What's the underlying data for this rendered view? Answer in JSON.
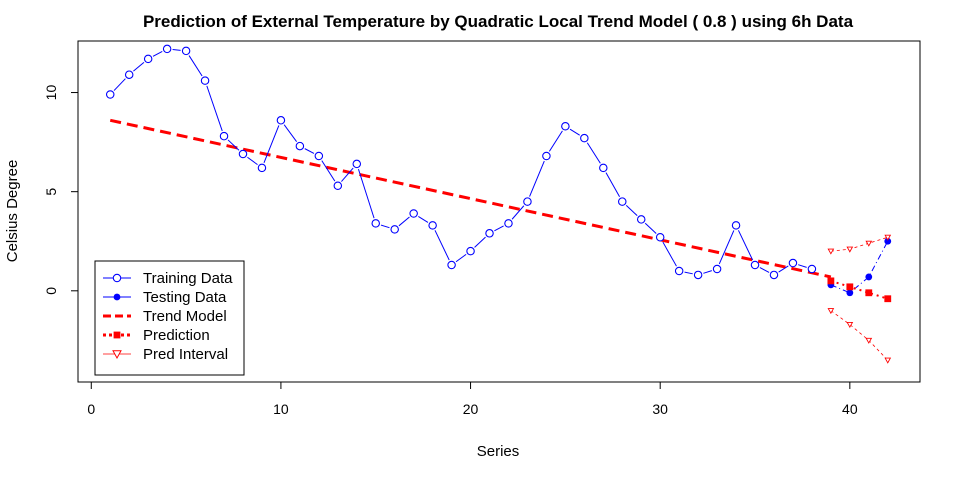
{
  "chart_data": {
    "type": "line",
    "title": "Prediction of External Temperature by Quadratic Local Trend Model ( 0.8 ) using 6h Data",
    "xlabel": "Series",
    "ylabel": "Celsius Degree",
    "xlim": [
      -0.7,
      43.7
    ],
    "ylim": [
      -4.6,
      12.6
    ],
    "x_ticks": [
      0,
      10,
      20,
      30,
      40
    ],
    "y_ticks": [
      0,
      5,
      10
    ],
    "grid": false,
    "legend_position": "bottom-left",
    "colors": {
      "training": "#0000ff",
      "testing": "#0000ff",
      "trend": "#ff0000",
      "prediction": "#ff0000",
      "interval": "#ff0000"
    },
    "series": [
      {
        "name": "Training Data",
        "style": "line-open-circle",
        "x": [
          1,
          2,
          3,
          4,
          5,
          6,
          7,
          8,
          9,
          10,
          11,
          12,
          13,
          14,
          15,
          16,
          17,
          18,
          19,
          20,
          21,
          22,
          23,
          24,
          25,
          26,
          27,
          28,
          29,
          30,
          31,
          32,
          33,
          34,
          35,
          36,
          37,
          38
        ],
        "values": [
          9.9,
          10.9,
          11.7,
          12.2,
          12.1,
          10.6,
          7.8,
          6.9,
          6.2,
          8.6,
          7.3,
          6.8,
          5.3,
          6.4,
          3.4,
          3.1,
          3.9,
          3.3,
          1.3,
          2.0,
          2.9,
          3.4,
          4.5,
          6.8,
          8.3,
          7.7,
          6.2,
          4.5,
          3.6,
          2.7,
          1.0,
          0.8,
          1.1,
          3.3,
          1.3,
          0.8,
          1.4,
          1.1
        ]
      },
      {
        "name": "Testing Data",
        "style": "line-filled-circle",
        "x": [
          39,
          40,
          41,
          42
        ],
        "values": [
          0.3,
          -0.1,
          0.7,
          2.5
        ]
      },
      {
        "name": "Trend Model",
        "style": "dashed-line",
        "x": [
          1,
          39
        ],
        "values": [
          8.6,
          0.7
        ]
      },
      {
        "name": "Prediction",
        "style": "dotted-filled-square",
        "x": [
          39,
          40,
          41,
          42
        ],
        "values": [
          0.5,
          0.2,
          -0.1,
          -0.4
        ]
      },
      {
        "name": "Pred Interval",
        "style": "dashed-open-triangle",
        "upper": {
          "x": [
            39,
            40,
            41,
            42
          ],
          "values": [
            2.0,
            2.1,
            2.4,
            2.7
          ]
        },
        "lower": {
          "x": [
            39,
            40,
            41,
            42
          ],
          "values": [
            -1.0,
            -1.7,
            -2.5,
            -3.5
          ]
        }
      }
    ]
  }
}
